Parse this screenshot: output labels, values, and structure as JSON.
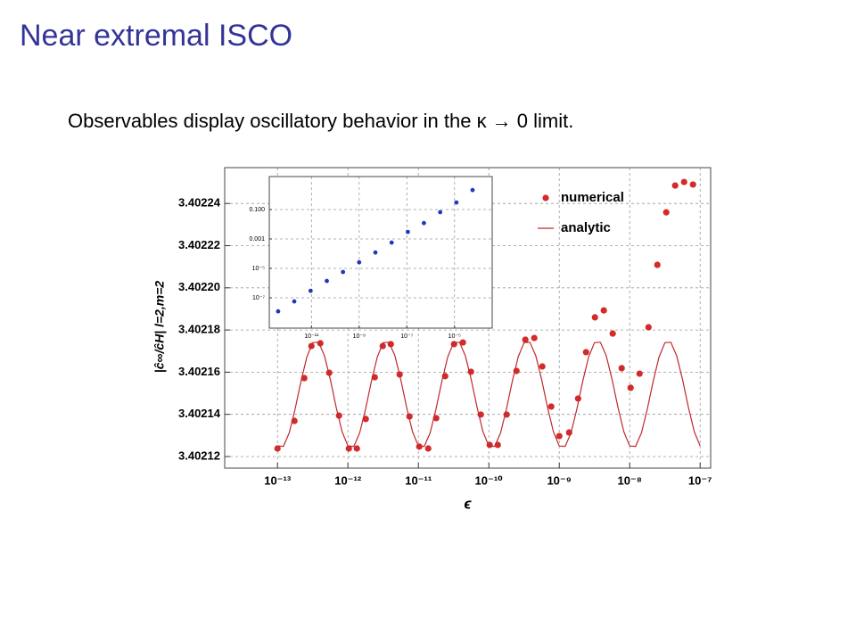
{
  "slide": {
    "title": "Near extremal ISCO",
    "text": "Observables display oscillatory behavior in the κ → 0 limit."
  },
  "chart_data": [
    {
      "type": "scatter",
      "xlabel": "ϵ",
      "ylabel": "|ĉ∞/ĉH| l=2,m=2",
      "xscale": "log",
      "yscale": "linear",
      "xlim": [
        1.78e-14,
        1.41e-07
      ],
      "ylim": [
        3.4021145,
        3.402257
      ],
      "xticks": [
        {
          "value": 1e-13,
          "label": "10⁻¹³"
        },
        {
          "value": 1e-12,
          "label": "10⁻¹²"
        },
        {
          "value": 1e-11,
          "label": "10⁻¹¹"
        },
        {
          "value": 1e-10,
          "label": "10⁻¹⁰"
        },
        {
          "value": 1e-09,
          "label": "10⁻⁹"
        },
        {
          "value": 1e-08,
          "label": "10⁻⁸"
        },
        {
          "value": 1e-07,
          "label": "10⁻⁷"
        }
      ],
      "yticks": [
        3.40212,
        3.40214,
        3.40216,
        3.40218,
        {
          "value": 3.4022,
          "label": "3.40220"
        },
        3.40222,
        3.40224
      ],
      "grid": true,
      "legend": "upper right",
      "series": [
        {
          "name": "numerical",
          "type": "scatter",
          "color": "#d42a2a",
          "x": [
            1e-13,
            1.74e-13,
            2.4e-13,
            3.03e-13,
            4.06e-13,
            5.42e-13,
            7.47e-13,
            1.03e-12,
            1.34e-12,
            1.79e-12,
            2.4e-12,
            3.12e-12,
            4.06e-12,
            5.42e-12,
            7.47e-12,
            1.03e-11,
            1.38e-11,
            1.79e-11,
            2.4e-11,
            3.21e-11,
            4.29e-11,
            5.58e-11,
            7.69e-11,
            1.03e-10,
            1.34e-10,
            1.79e-10,
            2.47e-10,
            3.3e-10,
            4.42e-10,
            5.74e-10,
            7.69e-10,
            1e-09,
            1.38e-09,
            1.85e-09,
            2.4e-09,
            3.21e-09,
            4.29e-09,
            5.74e-09,
            7.69e-09,
            1.03e-08,
            1.38e-08,
            1.85e-08,
            2.47e-08,
            3.3e-08,
            4.42e-08,
            5.92e-08,
            7.92e-08
          ],
          "values": [
            3.4021238,
            3.4021369,
            3.4021572,
            3.4021724,
            3.4021737,
            3.4021597,
            3.4021394,
            3.4021238,
            3.4021238,
            3.4021378,
            3.4021576,
            3.4021724,
            3.4021733,
            3.4021589,
            3.402139,
            3.4021247,
            3.4021238,
            3.4021382,
            3.4021581,
            3.4021733,
            3.4021741,
            3.4021602,
            3.4021399,
            3.4021255,
            3.4021255,
            3.4021399,
            3.4021606,
            3.4021754,
            3.4021762,
            3.4021627,
            3.4021437,
            3.4021297,
            3.4021314,
            3.4021475,
            3.4021695,
            3.402186,
            3.4021893,
            3.4021783,
            3.4021619,
            3.4021526,
            3.4021593,
            3.4021813,
            3.4022109,
            3.4022358,
            3.4022485,
            3.4022502,
            3.402249
          ]
        },
        {
          "name": "analytic",
          "type": "line",
          "color": "#c0282d",
          "x": [
            1e-13,
            1.2115e-13,
            1.4678e-13,
            1.7783e-13,
            2.1544e-13,
            2.6102e-13,
            3.1623e-13,
            3.8312e-13,
            4.6416e-13,
            5.6234e-13,
            6.8129e-13,
            8.254e-13,
            1e-12,
            1.2115e-12,
            1.4678e-12,
            1.7783e-12,
            2.1544e-12,
            2.6102e-12,
            3.1623e-12,
            3.8312e-12,
            4.6416e-12,
            5.6234e-12,
            6.8129e-12,
            8.254e-12,
            1e-11,
            1.2115e-11,
            1.4678e-11,
            1.7783e-11,
            2.1544e-11,
            2.6102e-11,
            3.1623e-11,
            3.8312e-11,
            4.6416e-11,
            5.6234e-11,
            6.8129e-11,
            8.254e-11,
            1e-10,
            1.2115e-10,
            1.4678e-10,
            1.7783e-10,
            2.1544e-10,
            2.6102e-10,
            3.1623e-10,
            3.8312e-10,
            4.6416e-10,
            5.6234e-10,
            6.8129e-10,
            8.254e-10,
            1e-09,
            1.2115e-09,
            1.4678e-09,
            1.7783e-09,
            2.1544e-09,
            2.6102e-09,
            3.1623e-09,
            3.8312e-09,
            4.6416e-09,
            5.6234e-09,
            6.8129e-09,
            8.254e-09,
            1e-08,
            1.2115e-08,
            1.4678e-08,
            1.7783e-08,
            2.1544e-08,
            2.6102e-08,
            3.1623e-08,
            3.8312e-08,
            4.6416e-08,
            5.6234e-08,
            6.8129e-08,
            8.254e-08,
            1e-07
          ],
          "values": [
            3.402125,
            3.4021248,
            3.4021312,
            3.4021425,
            3.4021557,
            3.4021672,
            3.402174,
            3.4021742,
            3.4021678,
            3.4021565,
            3.4021433,
            3.4021318,
            3.402125,
            3.4021248,
            3.4021312,
            3.4021425,
            3.4021557,
            3.4021672,
            3.402174,
            3.4021742,
            3.4021678,
            3.4021565,
            3.4021433,
            3.4021318,
            3.402125,
            3.4021248,
            3.4021312,
            3.4021425,
            3.4021557,
            3.4021672,
            3.402174,
            3.4021742,
            3.4021678,
            3.4021565,
            3.4021433,
            3.4021318,
            3.402125,
            3.4021248,
            3.4021312,
            3.4021425,
            3.4021557,
            3.4021672,
            3.402174,
            3.4021742,
            3.4021678,
            3.4021565,
            3.4021433,
            3.4021318,
            3.402125,
            3.4021248,
            3.4021312,
            3.4021425,
            3.4021557,
            3.4021672,
            3.402174,
            3.4021742,
            3.4021678,
            3.4021565,
            3.4021433,
            3.4021318,
            3.402125,
            3.4021248,
            3.4021312,
            3.4021425,
            3.4021557,
            3.4021672,
            3.402174,
            3.4021742,
            3.4021678,
            3.4021565,
            3.4021433,
            3.4021318,
            3.402125
          ]
        }
      ]
    },
    {
      "type": "scatter",
      "xscale": "log",
      "yscale": "log",
      "xlim": [
        1.7e-13,
        0.00038
      ],
      "ylim": [
        8.7e-10,
        17.4
      ],
      "xticks": [
        {
          "value": 1e-11,
          "label": "10⁻¹¹"
        },
        {
          "value": 1e-09,
          "label": "10⁻⁹"
        },
        {
          "value": 1e-07,
          "label": "10⁻⁷"
        },
        {
          "value": 1e-05,
          "label": "10⁻⁵"
        }
      ],
      "yticks": [
        {
          "value": 1e-07,
          "label": "10⁻⁷"
        },
        {
          "value": 1e-05,
          "label": "10⁻⁵"
        },
        0.001,
        {
          "value": 0.1,
          "label": "0.100"
        }
      ],
      "grid": true,
      "series": [
        {
          "type": "scatter",
          "color": "#2038b8",
          "x": [
            4e-13,
            1.9e-12,
            9.2e-12,
            4.4e-11,
            2.1e-10,
            1e-09,
            4.8e-09,
            2.3e-08,
            1.1e-07,
            5.2e-07,
            2.5e-06,
            1.2e-05,
            5.7e-05
          ],
          "values": [
            1.2e-08,
            5.7e-08,
            3e-07,
            1.4e-06,
            5.7e-06,
            2.6e-05,
            0.00012,
            0.00057,
            0.003,
            0.012,
            0.066,
            0.3,
            2.1
          ]
        }
      ]
    }
  ]
}
